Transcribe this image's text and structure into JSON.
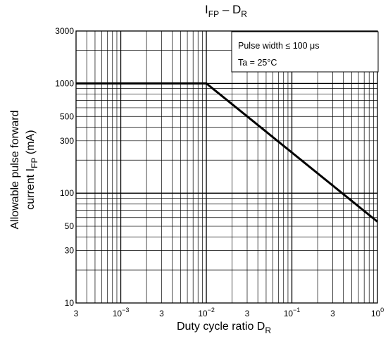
{
  "chart_data": {
    "type": "line",
    "title": {
      "main": "I",
      "main_sub": "FP",
      "sep": " – ",
      "var": "D",
      "var_sub": "R"
    },
    "xlabel": {
      "text": "Duty cycle ratio   D",
      "sub": "R"
    },
    "ylabel": {
      "line1": "Allowable pulse forward",
      "line2": "current   I",
      "line2_sub": "FP",
      "line2_tail": "   (mA)"
    },
    "x_scale": "log",
    "y_scale": "log",
    "xlim": [
      0.0003,
      1
    ],
    "ylim": [
      10,
      3000
    ],
    "x_ticks": [
      {
        "value": 0.0003,
        "label": "3"
      },
      {
        "value": 0.001,
        "base": "10",
        "exp": "−3"
      },
      {
        "value": 0.003,
        "label": "3"
      },
      {
        "value": 0.01,
        "base": "10",
        "exp": "−2"
      },
      {
        "value": 0.03,
        "label": "3"
      },
      {
        "value": 0.1,
        "base": "10",
        "exp": "−1"
      },
      {
        "value": 0.3,
        "label": "3"
      },
      {
        "value": 1,
        "base": "10",
        "exp": "0"
      }
    ],
    "y_ticks": [
      {
        "value": 10,
        "label": "10"
      },
      {
        "value": 30,
        "label": "30"
      },
      {
        "value": 50,
        "label": "50"
      },
      {
        "value": 100,
        "label": "100"
      },
      {
        "value": 300,
        "label": "300"
      },
      {
        "value": 500,
        "label": "500"
      },
      {
        "value": 1000,
        "label": "1000"
      },
      {
        "value": 3000,
        "label": "3000"
      }
    ],
    "grid": true,
    "series": [
      {
        "x": [
          0.0003,
          0.01,
          1
        ],
        "y": [
          1000,
          1000,
          55
        ]
      }
    ],
    "annotations": [
      "Pulse width  ≤ 100 μs",
      "Ta = 25°C"
    ],
    "colors": {
      "curve": "#000000",
      "grid": "#000000",
      "background": "#ffffff"
    }
  }
}
